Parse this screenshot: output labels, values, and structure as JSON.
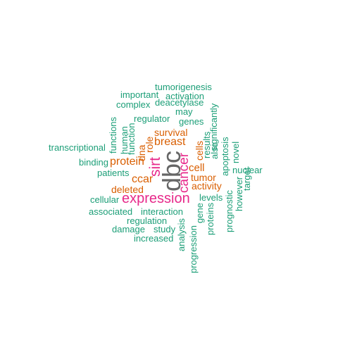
{
  "colors": {
    "green": "#1b9e77",
    "orange": "#d95f02",
    "magenta": "#e7298a",
    "gray": "#666666"
  },
  "words": {
    "dbc": "dbc",
    "expression": "expression",
    "sirt": "sirt",
    "cancer": "cancer",
    "breast": "breast",
    "protein": "protein",
    "survival": "survival",
    "role": "role",
    "dna": "dna",
    "ccar": "ccar",
    "deleted": "deleted",
    "cell": "cell",
    "cells": "cells",
    "tumor": "tumor",
    "activity": "activity",
    "tumorigenesis": "tumorigenesis",
    "important": "important",
    "activation": "activation",
    "complex": "complex",
    "deacetylase": "deacetylase",
    "may": "may",
    "regulator": "regulator",
    "genes": "genes",
    "functions": "functions",
    "human": "human",
    "function": "function",
    "significantly": "significantly",
    "also": "also",
    "results": "results",
    "transcriptional": "transcriptional",
    "binding": "binding",
    "patients": "patients",
    "apoptosis": "apoptosis",
    "novel": "novel",
    "nuclear": "nuclear",
    "target": "target",
    "however": "however",
    "prognostic": "prognostic",
    "levels": "levels",
    "gene": "gene",
    "proteins": "proteins",
    "cellular": "cellular",
    "associated": "associated",
    "interaction": "interaction",
    "regulation": "regulation",
    "damage": "damage",
    "study": "study",
    "increased": "increased",
    "analysis": "analysis",
    "progression": "progression"
  }
}
